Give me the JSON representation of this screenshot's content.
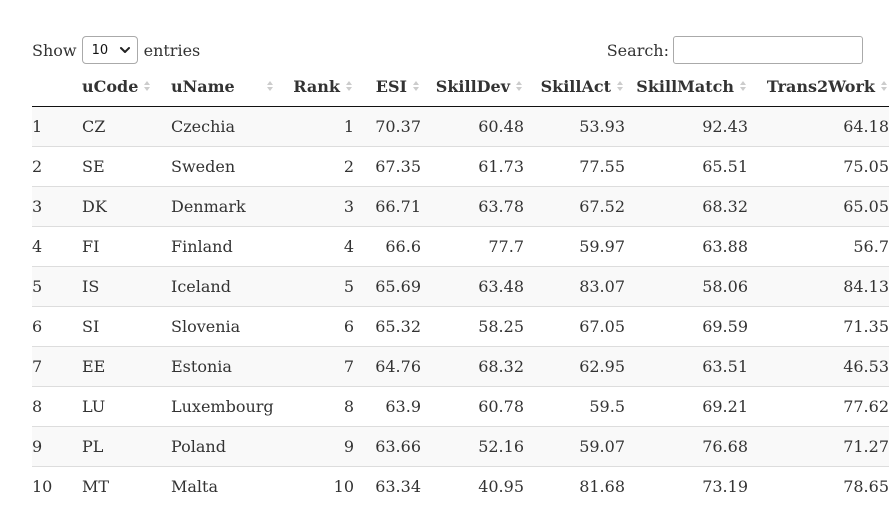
{
  "controls": {
    "show_label": "Show",
    "entries_label": "entries",
    "page_length_value": "10",
    "search_label": "Search:",
    "search_value": ""
  },
  "table": {
    "columns": [
      "uCode",
      "uName",
      "Rank",
      "ESI",
      "SkillDev",
      "SkillAct",
      "SkillMatch",
      "Trans2Work"
    ],
    "rows": [
      {
        "idx": "1",
        "code": "CZ",
        "name": "Czechia",
        "rank": "1",
        "esi": "70.37",
        "sdev": "60.48",
        "sact": "53.93",
        "smat": "92.43",
        "t2w": "64.18"
      },
      {
        "idx": "2",
        "code": "SE",
        "name": "Sweden",
        "rank": "2",
        "esi": "67.35",
        "sdev": "61.73",
        "sact": "77.55",
        "smat": "65.51",
        "t2w": "75.05"
      },
      {
        "idx": "3",
        "code": "DK",
        "name": "Denmark",
        "rank": "3",
        "esi": "66.71",
        "sdev": "63.78",
        "sact": "67.52",
        "smat": "68.32",
        "t2w": "65.05"
      },
      {
        "idx": "4",
        "code": "FI",
        "name": "Finland",
        "rank": "4",
        "esi": "66.6",
        "sdev": "77.7",
        "sact": "59.97",
        "smat": "63.88",
        "t2w": "56.7"
      },
      {
        "idx": "5",
        "code": "IS",
        "name": "Iceland",
        "rank": "5",
        "esi": "65.69",
        "sdev": "63.48",
        "sact": "83.07",
        "smat": "58.06",
        "t2w": "84.13"
      },
      {
        "idx": "6",
        "code": "SI",
        "name": "Slovenia",
        "rank": "6",
        "esi": "65.32",
        "sdev": "58.25",
        "sact": "67.05",
        "smat": "69.59",
        "t2w": "71.35"
      },
      {
        "idx": "7",
        "code": "EE",
        "name": "Estonia",
        "rank": "7",
        "esi": "64.76",
        "sdev": "68.32",
        "sact": "62.95",
        "smat": "63.51",
        "t2w": "46.53"
      },
      {
        "idx": "8",
        "code": "LU",
        "name": "Luxembourg",
        "rank": "8",
        "esi": "63.9",
        "sdev": "60.78",
        "sact": "59.5",
        "smat": "69.21",
        "t2w": "77.62"
      },
      {
        "idx": "9",
        "code": "PL",
        "name": "Poland",
        "rank": "9",
        "esi": "63.66",
        "sdev": "52.16",
        "sact": "59.07",
        "smat": "76.68",
        "t2w": "71.27"
      },
      {
        "idx": "10",
        "code": "MT",
        "name": "Malta",
        "rank": "10",
        "esi": "63.34",
        "sdev": "40.95",
        "sact": "81.68",
        "smat": "73.19",
        "t2w": "78.65"
      }
    ]
  },
  "icons": {
    "sort": "sort-both-icon",
    "dropdown": "chevron-down-icon"
  }
}
